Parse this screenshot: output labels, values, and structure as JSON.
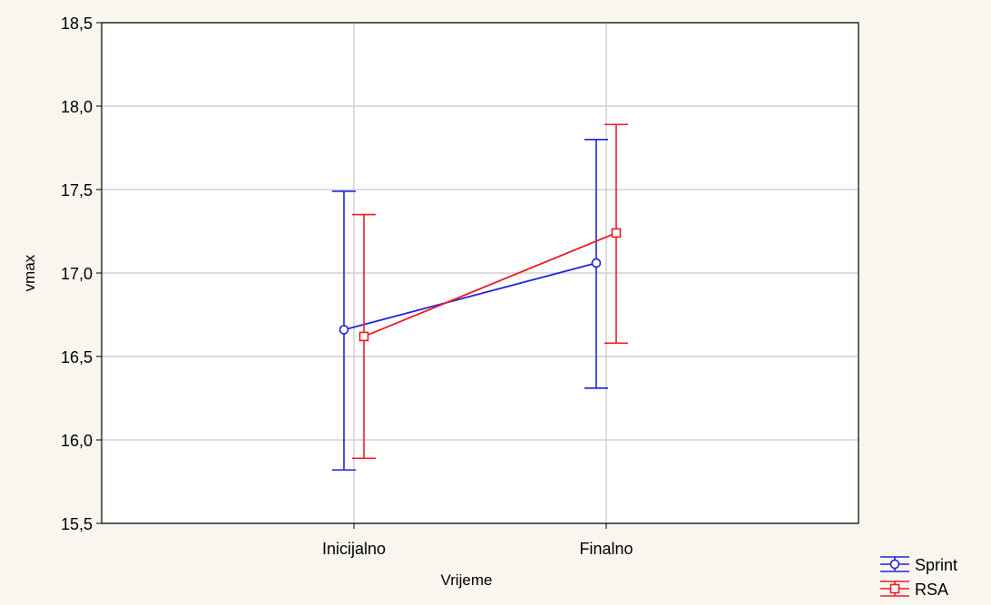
{
  "chart_data": {
    "type": "line",
    "subtype": "means with error bars",
    "title": "",
    "xlabel": "Vrijeme",
    "ylabel": "vmax",
    "categories": [
      "Inicijalno",
      "Finalno"
    ],
    "ylim": [
      15.5,
      18.5
    ],
    "yticks": [
      15.5,
      16.0,
      16.5,
      17.0,
      17.5,
      18.0,
      18.5
    ],
    "ytick_labels": [
      "15,5",
      "16,0",
      "16,5",
      "17,0",
      "17,5",
      "18,0",
      "18,5"
    ],
    "grid": true,
    "legend_position": "bottom-right",
    "series": [
      {
        "name": "Sprint",
        "color": "#2222dd",
        "marker": "circle",
        "values": [
          16.66,
          17.06
        ],
        "lower": [
          15.82,
          16.31
        ],
        "upper": [
          17.49,
          17.8
        ]
      },
      {
        "name": "RSA",
        "color": "#ee1c24",
        "marker": "square",
        "values": [
          16.62,
          17.24
        ],
        "lower": [
          15.89,
          16.58
        ],
        "upper": [
          17.35,
          17.89
        ]
      }
    ]
  }
}
